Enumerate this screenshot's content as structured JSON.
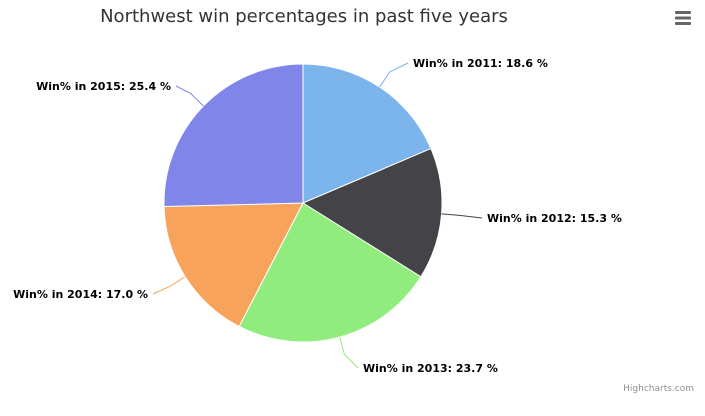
{
  "chart_data": {
    "type": "pie",
    "title": "Northwest win percentages in past five years",
    "label_suffix": " %",
    "slices": [
      {
        "label": "Win% in 2011",
        "value": 18.6,
        "color": "#7cb5ec"
      },
      {
        "label": "Win% in 2012",
        "value": 15.3,
        "color": "#434348"
      },
      {
        "label": "Win% in 2013",
        "value": 23.7,
        "color": "#90ed7d"
      },
      {
        "label": "Win% in 2014",
        "value": 17.0,
        "color": "#f7a35c"
      },
      {
        "label": "Win% in 2015",
        "value": 25.4,
        "color": "#8085e9"
      }
    ],
    "start_angle": "top",
    "direction": "clockwise"
  },
  "credits": {
    "text": "Highcharts.com"
  },
  "menu": {
    "icon": "hamburger-menu-icon"
  }
}
